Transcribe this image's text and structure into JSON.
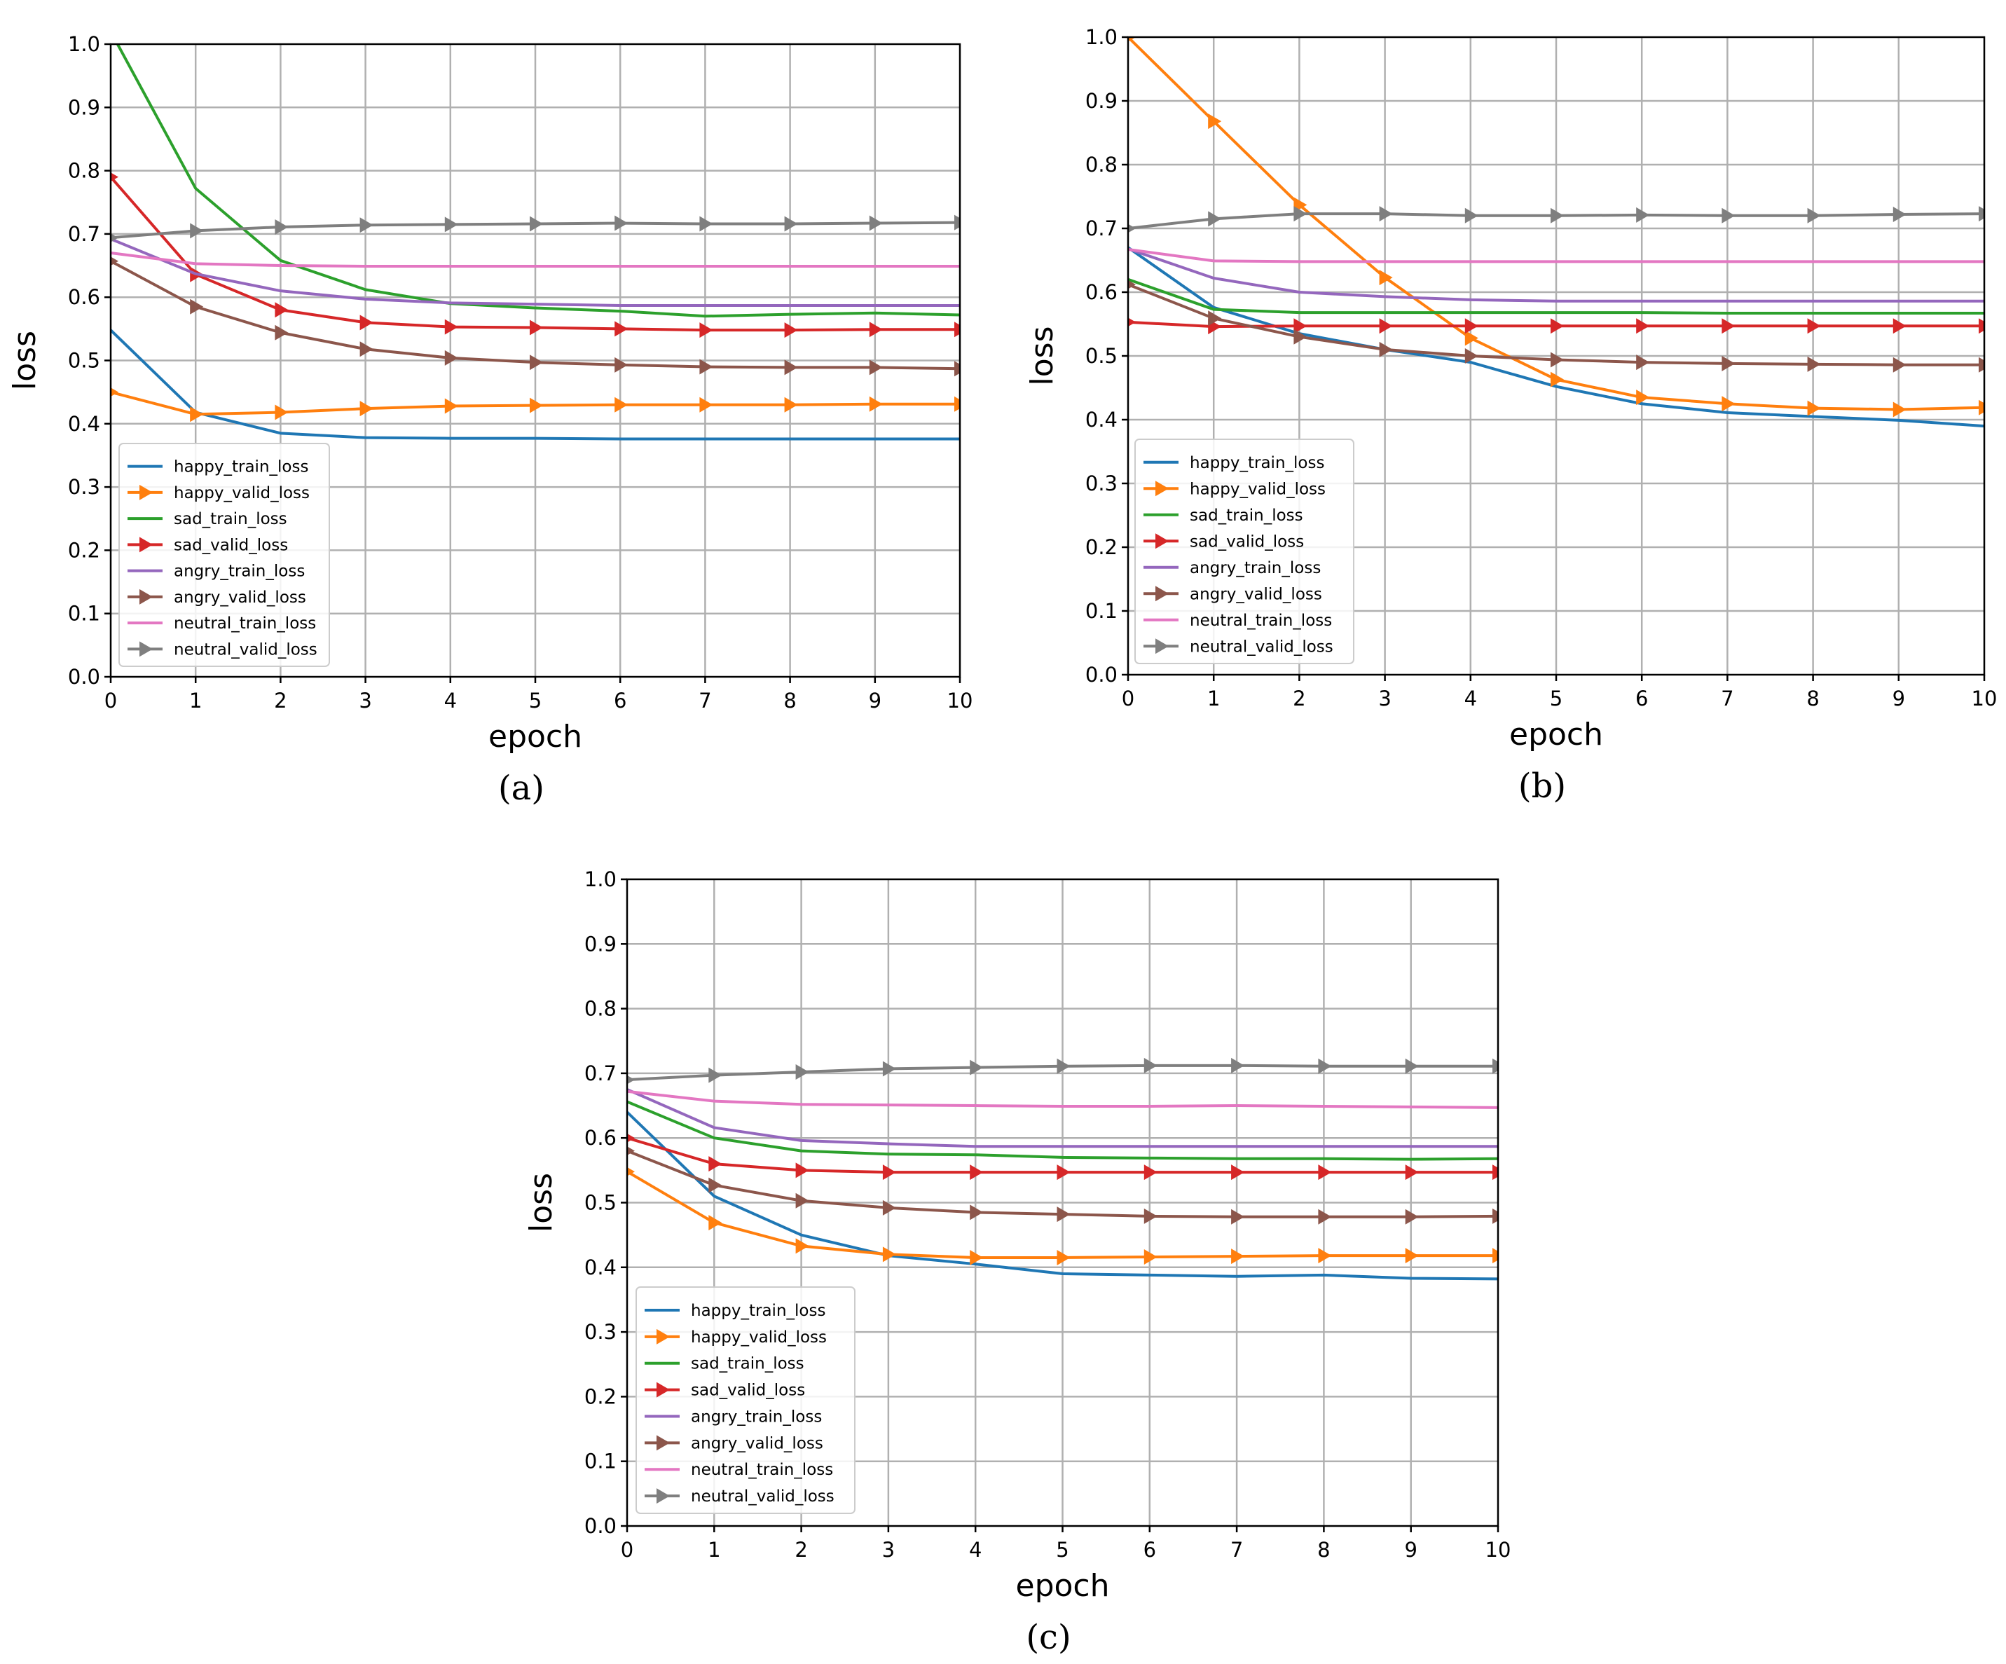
{
  "chart_data": [
    {
      "type": "line",
      "caption": "(a)",
      "xlabel": "epoch",
      "ylabel": "loss",
      "xlim": [
        0,
        10
      ],
      "ylim": [
        0,
        1.0
      ],
      "grid": true,
      "legend_position": "lower-left",
      "x": [
        0,
        1,
        2,
        3,
        4,
        5,
        6,
        7,
        8,
        9,
        10
      ],
      "x_ticks": [
        "0",
        "1",
        "2",
        "3",
        "4",
        "5",
        "6",
        "7",
        "8",
        "9",
        "10"
      ],
      "y_ticks": [
        "0.0",
        "0.1",
        "0.2",
        "0.3",
        "0.4",
        "0.5",
        "0.6",
        "0.7",
        "0.8",
        "0.9",
        "1.0"
      ],
      "series": [
        {
          "name": "happy_train_loss",
          "color": "#1f77b4",
          "marker": "none",
          "values": [
            0.548,
            0.418,
            0.385,
            0.378,
            0.377,
            0.377,
            0.376,
            0.376,
            0.376,
            0.376,
            0.376
          ]
        },
        {
          "name": "happy_valid_loss",
          "color": "#ff7f0e",
          "marker": "triangle-right",
          "values": [
            0.45,
            0.415,
            0.418,
            0.424,
            0.428,
            0.429,
            0.43,
            0.43,
            0.43,
            0.431,
            0.431
          ]
        },
        {
          "name": "sad_train_loss",
          "color": "#2ca02c",
          "marker": "none",
          "values": [
            1.02,
            0.772,
            0.658,
            0.612,
            0.59,
            0.583,
            0.578,
            0.57,
            0.573,
            0.575,
            0.572
          ]
        },
        {
          "name": "sad_valid_loss",
          "color": "#d62728",
          "marker": "triangle-right",
          "values": [
            0.79,
            0.636,
            0.58,
            0.56,
            0.553,
            0.552,
            0.55,
            0.548,
            0.548,
            0.549,
            0.549
          ]
        },
        {
          "name": "angry_train_loss",
          "color": "#9467bd",
          "marker": "none",
          "values": [
            0.692,
            0.637,
            0.61,
            0.597,
            0.591,
            0.589,
            0.587,
            0.587,
            0.587,
            0.587,
            0.587
          ]
        },
        {
          "name": "angry_valid_loss",
          "color": "#8c564b",
          "marker": "triangle-right",
          "values": [
            0.657,
            0.585,
            0.544,
            0.518,
            0.504,
            0.497,
            0.493,
            0.49,
            0.489,
            0.489,
            0.487
          ]
        },
        {
          "name": "neutral_train_loss",
          "color": "#e377c2",
          "marker": "none",
          "values": [
            0.67,
            0.653,
            0.65,
            0.649,
            0.649,
            0.649,
            0.649,
            0.649,
            0.649,
            0.649,
            0.649
          ]
        },
        {
          "name": "neutral_valid_loss",
          "color": "#7f7f7f",
          "marker": "triangle-right",
          "values": [
            0.694,
            0.705,
            0.711,
            0.714,
            0.715,
            0.716,
            0.717,
            0.716,
            0.716,
            0.717,
            0.718
          ]
        }
      ]
    },
    {
      "type": "line",
      "caption": "(b)",
      "xlabel": "epoch",
      "ylabel": "loss",
      "xlim": [
        0,
        10
      ],
      "ylim": [
        0,
        1.0
      ],
      "grid": true,
      "legend_position": "lower-left",
      "x": [
        0,
        1,
        2,
        3,
        4,
        5,
        6,
        7,
        8,
        9,
        10
      ],
      "x_ticks": [
        "0",
        "1",
        "2",
        "3",
        "4",
        "5",
        "6",
        "7",
        "8",
        "9",
        "10"
      ],
      "y_ticks": [
        "0.0",
        "0.1",
        "0.2",
        "0.3",
        "0.4",
        "0.5",
        "0.6",
        "0.7",
        "0.8",
        "0.9",
        "1.0"
      ],
      "series": [
        {
          "name": "happy_train_loss",
          "color": "#1f77b4",
          "marker": "none",
          "values": [
            0.67,
            0.576,
            0.535,
            0.51,
            0.49,
            0.452,
            0.425,
            0.411,
            0.405,
            0.399,
            0.39
          ]
        },
        {
          "name": "happy_valid_loss",
          "color": "#ff7f0e",
          "marker": "triangle-right",
          "values": [
            1.0,
            0.868,
            0.737,
            0.623,
            0.528,
            0.463,
            0.435,
            0.425,
            0.418,
            0.416,
            0.419
          ]
        },
        {
          "name": "sad_train_loss",
          "color": "#2ca02c",
          "marker": "none",
          "values": [
            0.62,
            0.573,
            0.568,
            0.568,
            0.568,
            0.568,
            0.568,
            0.567,
            0.567,
            0.567,
            0.567
          ]
        },
        {
          "name": "sad_valid_loss",
          "color": "#d62728",
          "marker": "triangle-right",
          "values": [
            0.553,
            0.546,
            0.547,
            0.547,
            0.547,
            0.547,
            0.547,
            0.547,
            0.547,
            0.547,
            0.547
          ]
        },
        {
          "name": "angry_train_loss",
          "color": "#9467bd",
          "marker": "none",
          "values": [
            0.668,
            0.622,
            0.6,
            0.593,
            0.588,
            0.586,
            0.586,
            0.586,
            0.586,
            0.586,
            0.586
          ]
        },
        {
          "name": "angry_valid_loss",
          "color": "#8c564b",
          "marker": "triangle-right",
          "values": [
            0.612,
            0.559,
            0.53,
            0.51,
            0.5,
            0.494,
            0.49,
            0.488,
            0.487,
            0.486,
            0.486
          ]
        },
        {
          "name": "neutral_train_loss",
          "color": "#e377c2",
          "marker": "none",
          "values": [
            0.667,
            0.649,
            0.648,
            0.648,
            0.648,
            0.648,
            0.648,
            0.648,
            0.648,
            0.648,
            0.648
          ]
        },
        {
          "name": "neutral_valid_loss",
          "color": "#7f7f7f",
          "marker": "triangle-right",
          "values": [
            0.7,
            0.715,
            0.723,
            0.723,
            0.72,
            0.72,
            0.721,
            0.72,
            0.72,
            0.722,
            0.723
          ]
        }
      ]
    },
    {
      "type": "line",
      "caption": "(c)",
      "xlabel": "epoch",
      "ylabel": "loss",
      "xlim": [
        0,
        10
      ],
      "ylim": [
        0,
        1.0
      ],
      "grid": true,
      "legend_position": "lower-left",
      "x": [
        0,
        1,
        2,
        3,
        4,
        5,
        6,
        7,
        8,
        9,
        10
      ],
      "x_ticks": [
        "0",
        "1",
        "2",
        "3",
        "4",
        "5",
        "6",
        "7",
        "8",
        "9",
        "10"
      ],
      "y_ticks": [
        "0.0",
        "0.1",
        "0.2",
        "0.3",
        "0.4",
        "0.5",
        "0.6",
        "0.7",
        "0.8",
        "0.9",
        "1.0"
      ],
      "series": [
        {
          "name": "happy_train_loss",
          "color": "#1f77b4",
          "marker": "none",
          "values": [
            0.64,
            0.51,
            0.45,
            0.418,
            0.405,
            0.39,
            0.388,
            0.386,
            0.388,
            0.383,
            0.382
          ]
        },
        {
          "name": "happy_valid_loss",
          "color": "#ff7f0e",
          "marker": "triangle-right",
          "values": [
            0.548,
            0.469,
            0.433,
            0.42,
            0.415,
            0.415,
            0.416,
            0.417,
            0.418,
            0.418,
            0.418
          ]
        },
        {
          "name": "sad_train_loss",
          "color": "#2ca02c",
          "marker": "none",
          "values": [
            0.656,
            0.6,
            0.58,
            0.575,
            0.574,
            0.57,
            0.569,
            0.568,
            0.568,
            0.567,
            0.568
          ]
        },
        {
          "name": "sad_valid_loss",
          "color": "#d62728",
          "marker": "triangle-right",
          "values": [
            0.6,
            0.56,
            0.55,
            0.547,
            0.547,
            0.547,
            0.547,
            0.547,
            0.547,
            0.547,
            0.547
          ]
        },
        {
          "name": "angry_train_loss",
          "color": "#9467bd",
          "marker": "none",
          "values": [
            0.675,
            0.616,
            0.596,
            0.591,
            0.587,
            0.587,
            0.587,
            0.587,
            0.587,
            0.587,
            0.587
          ]
        },
        {
          "name": "angry_valid_loss",
          "color": "#8c564b",
          "marker": "triangle-right",
          "values": [
            0.58,
            0.527,
            0.503,
            0.492,
            0.485,
            0.482,
            0.479,
            0.478,
            0.478,
            0.478,
            0.479
          ]
        },
        {
          "name": "neutral_train_loss",
          "color": "#e377c2",
          "marker": "none",
          "values": [
            0.672,
            0.657,
            0.652,
            0.651,
            0.65,
            0.649,
            0.649,
            0.65,
            0.649,
            0.648,
            0.647
          ]
        },
        {
          "name": "neutral_valid_loss",
          "color": "#7f7f7f",
          "marker": "triangle-right",
          "values": [
            0.69,
            0.697,
            0.702,
            0.707,
            0.709,
            0.711,
            0.712,
            0.712,
            0.711,
            0.711,
            0.711
          ]
        }
      ]
    }
  ]
}
